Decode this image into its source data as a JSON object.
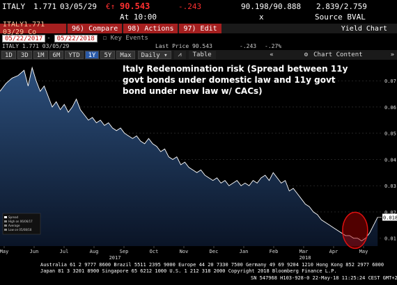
{
  "quote": {
    "ticker": "ITALY",
    "coupon": "1.771",
    "maturity": "03/05/29",
    "price_prefix": "€↑",
    "price": "90.543",
    "change": "-.243",
    "bid_ask": "90.198/90.888",
    "yields": "2.839/2.759",
    "time_label": "At 10:00",
    "times_label": "x",
    "source": "Source BVAL"
  },
  "toolbar": {
    "security_field": "ITALY1.771 03/29 Co",
    "compare": "96) Compare",
    "actions": "98) Actions",
    "edit": "97) Edit",
    "chart_name": "Yield Chart"
  },
  "dates": {
    "start": "05/22/2017",
    "end": "05/22/2018",
    "key_events": "Key Events"
  },
  "info": {
    "security": "ITALY 1.771 03/05/29",
    "last_price": "Last Price 90.543",
    "change": "-.243",
    "pct_change": "-.27%"
  },
  "periods": [
    {
      "label": "1D",
      "active": false
    },
    {
      "label": "3D",
      "active": false
    },
    {
      "label": "1M",
      "active": false
    },
    {
      "label": "6M",
      "active": false
    },
    {
      "label": "YTD",
      "active": false
    },
    {
      "label": "1Y",
      "active": true
    },
    {
      "label": "5Y",
      "active": false
    },
    {
      "label": "Max",
      "active": false
    }
  ],
  "period_controls": {
    "frequency": "Daily",
    "table": "Table",
    "chart_content": "Chart Content"
  },
  "annotation": "Italy Redenomination risk (Spread between 11y govt bonds under domestic law and 11y govt bond under new law w/ CACs)",
  "legend": {
    "series": "Spread",
    "high": "High on 06/06/17",
    "average": "Average",
    "low": "Low on 05/08/18"
  },
  "current_value_label": "0.018",
  "chart_data": {
    "type": "area",
    "title": "Italy Redenomination risk (Spread between 11y govt bonds under domestic law and 11y govt bond under new law w/ CACs)",
    "x_labels": [
      "May",
      "Jun",
      "Jul",
      "Aug",
      "Sep",
      "Oct",
      "Nov",
      "Dec",
      "Jan",
      "Feb",
      "Mar",
      "Apr",
      "May"
    ],
    "year_labels": [
      "2017",
      "2018"
    ],
    "y_ticks": [
      "0.07",
      "0.06",
      "0.05",
      "0.04",
      "0.03",
      "0.02",
      "0.01"
    ],
    "ylim": [
      0.007,
      0.078
    ],
    "series": [
      {
        "name": "Spread",
        "points": [
          [
            0,
            0.066
          ],
          [
            3,
            0.069
          ],
          [
            6,
            0.071
          ],
          [
            9,
            0.072
          ],
          [
            12,
            0.074
          ],
          [
            14,
            0.068
          ],
          [
            16,
            0.075
          ],
          [
            18,
            0.07
          ],
          [
            20,
            0.066
          ],
          [
            22,
            0.068
          ],
          [
            24,
            0.064
          ],
          [
            26,
            0.06
          ],
          [
            28,
            0.062
          ],
          [
            30,
            0.059
          ],
          [
            32,
            0.061
          ],
          [
            34,
            0.058
          ],
          [
            36,
            0.06
          ],
          [
            38,
            0.063
          ],
          [
            40,
            0.059
          ],
          [
            42,
            0.057
          ],
          [
            44,
            0.055
          ],
          [
            46,
            0.056
          ],
          [
            48,
            0.054
          ],
          [
            50,
            0.055
          ],
          [
            52,
            0.053
          ],
          [
            54,
            0.054
          ],
          [
            56,
            0.052
          ],
          [
            58,
            0.051
          ],
          [
            60,
            0.052
          ],
          [
            62,
            0.05
          ],
          [
            64,
            0.049
          ],
          [
            66,
            0.048
          ],
          [
            68,
            0.049
          ],
          [
            70,
            0.047
          ],
          [
            72,
            0.046
          ],
          [
            74,
            0.048
          ],
          [
            76,
            0.046
          ],
          [
            78,
            0.045
          ],
          [
            80,
            0.043
          ],
          [
            82,
            0.044
          ],
          [
            84,
            0.041
          ],
          [
            86,
            0.04
          ],
          [
            88,
            0.041
          ],
          [
            90,
            0.038
          ],
          [
            92,
            0.039
          ],
          [
            94,
            0.037
          ],
          [
            96,
            0.036
          ],
          [
            98,
            0.035
          ],
          [
            100,
            0.036
          ],
          [
            102,
            0.034
          ],
          [
            104,
            0.033
          ],
          [
            106,
            0.032
          ],
          [
            108,
            0.033
          ],
          [
            110,
            0.031
          ],
          [
            112,
            0.032
          ],
          [
            114,
            0.03
          ],
          [
            116,
            0.031
          ],
          [
            118,
            0.032
          ],
          [
            120,
            0.03
          ],
          [
            122,
            0.031
          ],
          [
            124,
            0.03
          ],
          [
            126,
            0.032
          ],
          [
            128,
            0.031
          ],
          [
            130,
            0.033
          ],
          [
            132,
            0.034
          ],
          [
            134,
            0.032
          ],
          [
            136,
            0.035
          ],
          [
            138,
            0.033
          ],
          [
            140,
            0.031
          ],
          [
            142,
            0.032
          ],
          [
            144,
            0.028
          ],
          [
            146,
            0.029
          ],
          [
            148,
            0.027
          ],
          [
            150,
            0.025
          ],
          [
            152,
            0.023
          ],
          [
            154,
            0.022
          ],
          [
            156,
            0.02
          ],
          [
            158,
            0.019
          ],
          [
            160,
            0.017
          ],
          [
            162,
            0.016
          ],
          [
            164,
            0.015
          ],
          [
            166,
            0.014
          ],
          [
            168,
            0.013
          ],
          [
            170,
            0.012
          ],
          [
            172,
            0.011
          ],
          [
            174,
            0.011
          ],
          [
            176,
            0.01
          ],
          [
            178,
            0.01
          ],
          [
            180,
            0.009
          ],
          [
            182,
            0.01
          ],
          [
            184,
            0.012
          ],
          [
            186,
            0.015
          ],
          [
            188,
            0.018
          ]
        ]
      }
    ],
    "highlight": "circle around latest values (May 2018)"
  },
  "footer": {
    "line1": "Australia 61 2 9777 8600 Brazil 5511 2395 9000 Europe 44 20 7330 7500 Germany 49 69 9204 1210 Hong Kong 852 2977 6000",
    "line2": "Japan 81 3 3201 8900          Singapore 65 6212 1000          U.S. 1 212 318 2000          Copyright 2018 Bloomberg Finance L.P.",
    "line3": "SN 547968 H103-928-0 22-May-18 11:25:24 CEST GMT+2:00"
  },
  "colors": {
    "accent_red": "#a51f1f",
    "price_red": "#ff3030",
    "line": "#ffffff",
    "area_top": "#2c4f7c",
    "area_bottom": "#0a1426"
  }
}
